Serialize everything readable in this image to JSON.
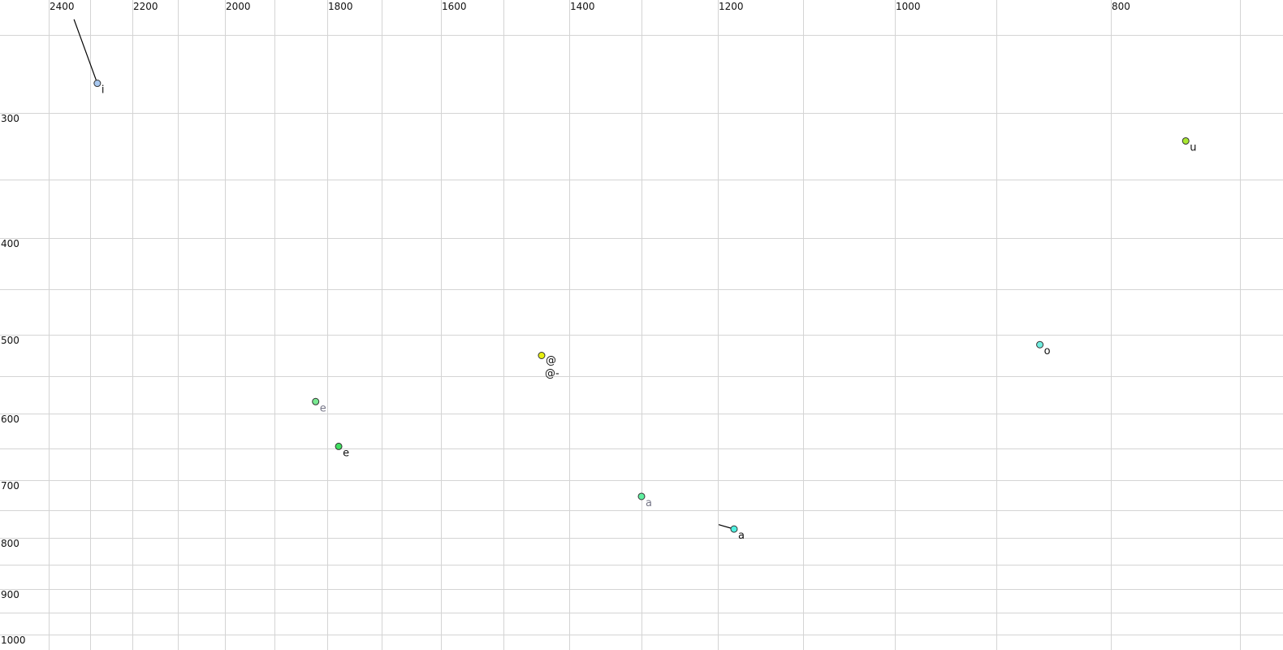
{
  "chart_data": {
    "type": "scatter",
    "title": "",
    "xlabel": "",
    "ylabel": "",
    "x_axis": {
      "reversed": true,
      "scale": "log-like",
      "range": [
        2450,
        700
      ],
      "gridlines": [
        2400,
        2300,
        2200,
        2100,
        2000,
        1900,
        1800,
        1700,
        1600,
        1500,
        1400,
        1300,
        1200,
        1100,
        1000,
        900,
        800,
        700
      ],
      "tick_labels": [
        "2400",
        "2200",
        "2000",
        "1800",
        "1600",
        "1400",
        "1200",
        "1000",
        "800"
      ],
      "position": "top"
    },
    "y_axis": {
      "reversed": false,
      "scale": "log-like",
      "range": [
        230,
        1000
      ],
      "gridlines": [
        250,
        300,
        350,
        400,
        450,
        500,
        550,
        600,
        650,
        700,
        750,
        800,
        850,
        900,
        950,
        1000
      ],
      "tick_labels": [
        "300",
        "400",
        "500",
        "600",
        "700",
        "800",
        "900",
        "1000"
      ],
      "position": "left"
    },
    "grid": true,
    "points": [
      {
        "label": "i",
        "x": 2283,
        "y": 281,
        "color": "#a8c8f0",
        "label_color": "#111111",
        "trail": [
          2339,
          240
        ]
      },
      {
        "label": "u",
        "x": 742,
        "y": 321,
        "color": "#a8e830",
        "label_color": "#111111"
      },
      {
        "label": "o",
        "x": 862,
        "y": 512,
        "color": "#70eee0",
        "label_color": "#111111"
      },
      {
        "label": "@",
        "x": 1442,
        "y": 525,
        "color": "#e8f010",
        "label_color": "#111111",
        "extra_label": "@-"
      },
      {
        "label": "e",
        "x": 1822,
        "y": 584,
        "color": "#78e890",
        "label_color": "#777788"
      },
      {
        "label": "e",
        "x": 1779,
        "y": 647,
        "color": "#40e060",
        "label_color": "#111111"
      },
      {
        "label": "a",
        "x": 1300,
        "y": 727,
        "color": "#60f0a0",
        "label_color": "#777788"
      },
      {
        "label": "a",
        "x": 1181,
        "y": 784,
        "color": "#50f0e0",
        "label_color": "#111111",
        "trail": [
          1199,
          776
        ]
      }
    ]
  }
}
